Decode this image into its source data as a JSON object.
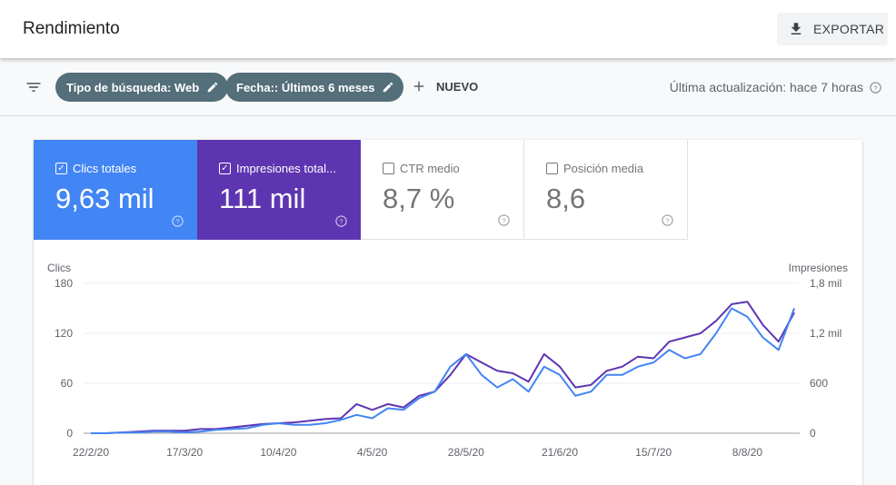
{
  "header": {
    "title": "Rendimiento",
    "export_label": "EXPORTAR"
  },
  "filters": {
    "chips": [
      {
        "label": "Tipo de búsqueda: Web"
      },
      {
        "label": "Fecha:: Últimos 6 meses"
      }
    ],
    "new_label": "NUEVO",
    "last_update": "Última actualización: hace 7 horas"
  },
  "metrics": [
    {
      "label": "Clics totales",
      "value": "9,63 mil",
      "checked": true,
      "color": "#4285f4"
    },
    {
      "label": "Impresiones total...",
      "value": "111 mil",
      "checked": true,
      "color": "#5e35b1"
    },
    {
      "label": "CTR medio",
      "value": "8,7 %",
      "checked": false
    },
    {
      "label": "Posición media",
      "value": "8,6",
      "checked": false
    }
  ],
  "chart_data": {
    "type": "line",
    "left_label": "Clics",
    "right_label": "Impresiones",
    "left_ylim": [
      0,
      180
    ],
    "right_ylim": [
      0,
      1800
    ],
    "left_ticks": [
      "0",
      "60",
      "120",
      "180"
    ],
    "right_ticks": [
      "0",
      "600",
      "1,2 mil",
      "1,8 mil"
    ],
    "x_tick_labels": [
      "22/2/20",
      "17/3/20",
      "10/4/20",
      "4/5/20",
      "28/5/20",
      "21/6/20",
      "15/7/20",
      "8/8/20"
    ],
    "grid": true,
    "x": [
      "22/2/20",
      "26/2/20",
      "1/3/20",
      "5/3/20",
      "9/3/20",
      "13/3/20",
      "17/3/20",
      "21/3/20",
      "25/3/20",
      "29/3/20",
      "2/4/20",
      "6/4/20",
      "10/4/20",
      "14/4/20",
      "18/4/20",
      "22/4/20",
      "26/4/20",
      "30/4/20",
      "4/5/20",
      "8/5/20",
      "12/5/20",
      "16/5/20",
      "20/5/20",
      "24/5/20",
      "28/5/20",
      "1/6/20",
      "5/6/20",
      "9/6/20",
      "13/6/20",
      "17/6/20",
      "21/6/20",
      "25/6/20",
      "29/6/20",
      "3/7/20",
      "7/7/20",
      "11/7/20",
      "15/7/20",
      "19/7/20",
      "23/7/20",
      "27/7/20",
      "31/7/20",
      "4/8/20",
      "8/8/20",
      "12/8/20",
      "16/8/20",
      "20/8/20"
    ],
    "series": [
      {
        "name": "Clics",
        "axis": "left",
        "color": "#4285f4",
        "values": [
          0,
          0,
          1,
          1,
          2,
          2,
          1,
          2,
          4,
          5,
          6,
          10,
          12,
          10,
          10,
          12,
          16,
          22,
          18,
          30,
          28,
          42,
          50,
          80,
          95,
          70,
          55,
          65,
          50,
          80,
          70,
          45,
          50,
          70,
          70,
          80,
          85,
          100,
          90,
          95,
          120,
          150,
          140,
          115,
          100,
          150
        ]
      },
      {
        "name": "Impresiones",
        "axis": "right",
        "color": "#5e35b1",
        "values": [
          0,
          0,
          10,
          20,
          30,
          30,
          30,
          50,
          50,
          70,
          90,
          110,
          120,
          130,
          150,
          170,
          180,
          350,
          280,
          350,
          310,
          450,
          500,
          700,
          950,
          850,
          750,
          720,
          620,
          950,
          800,
          550,
          580,
          750,
          800,
          920,
          900,
          1100,
          1150,
          1200,
          1350,
          1550,
          1580,
          1300,
          1100,
          1450
        ]
      }
    ]
  }
}
